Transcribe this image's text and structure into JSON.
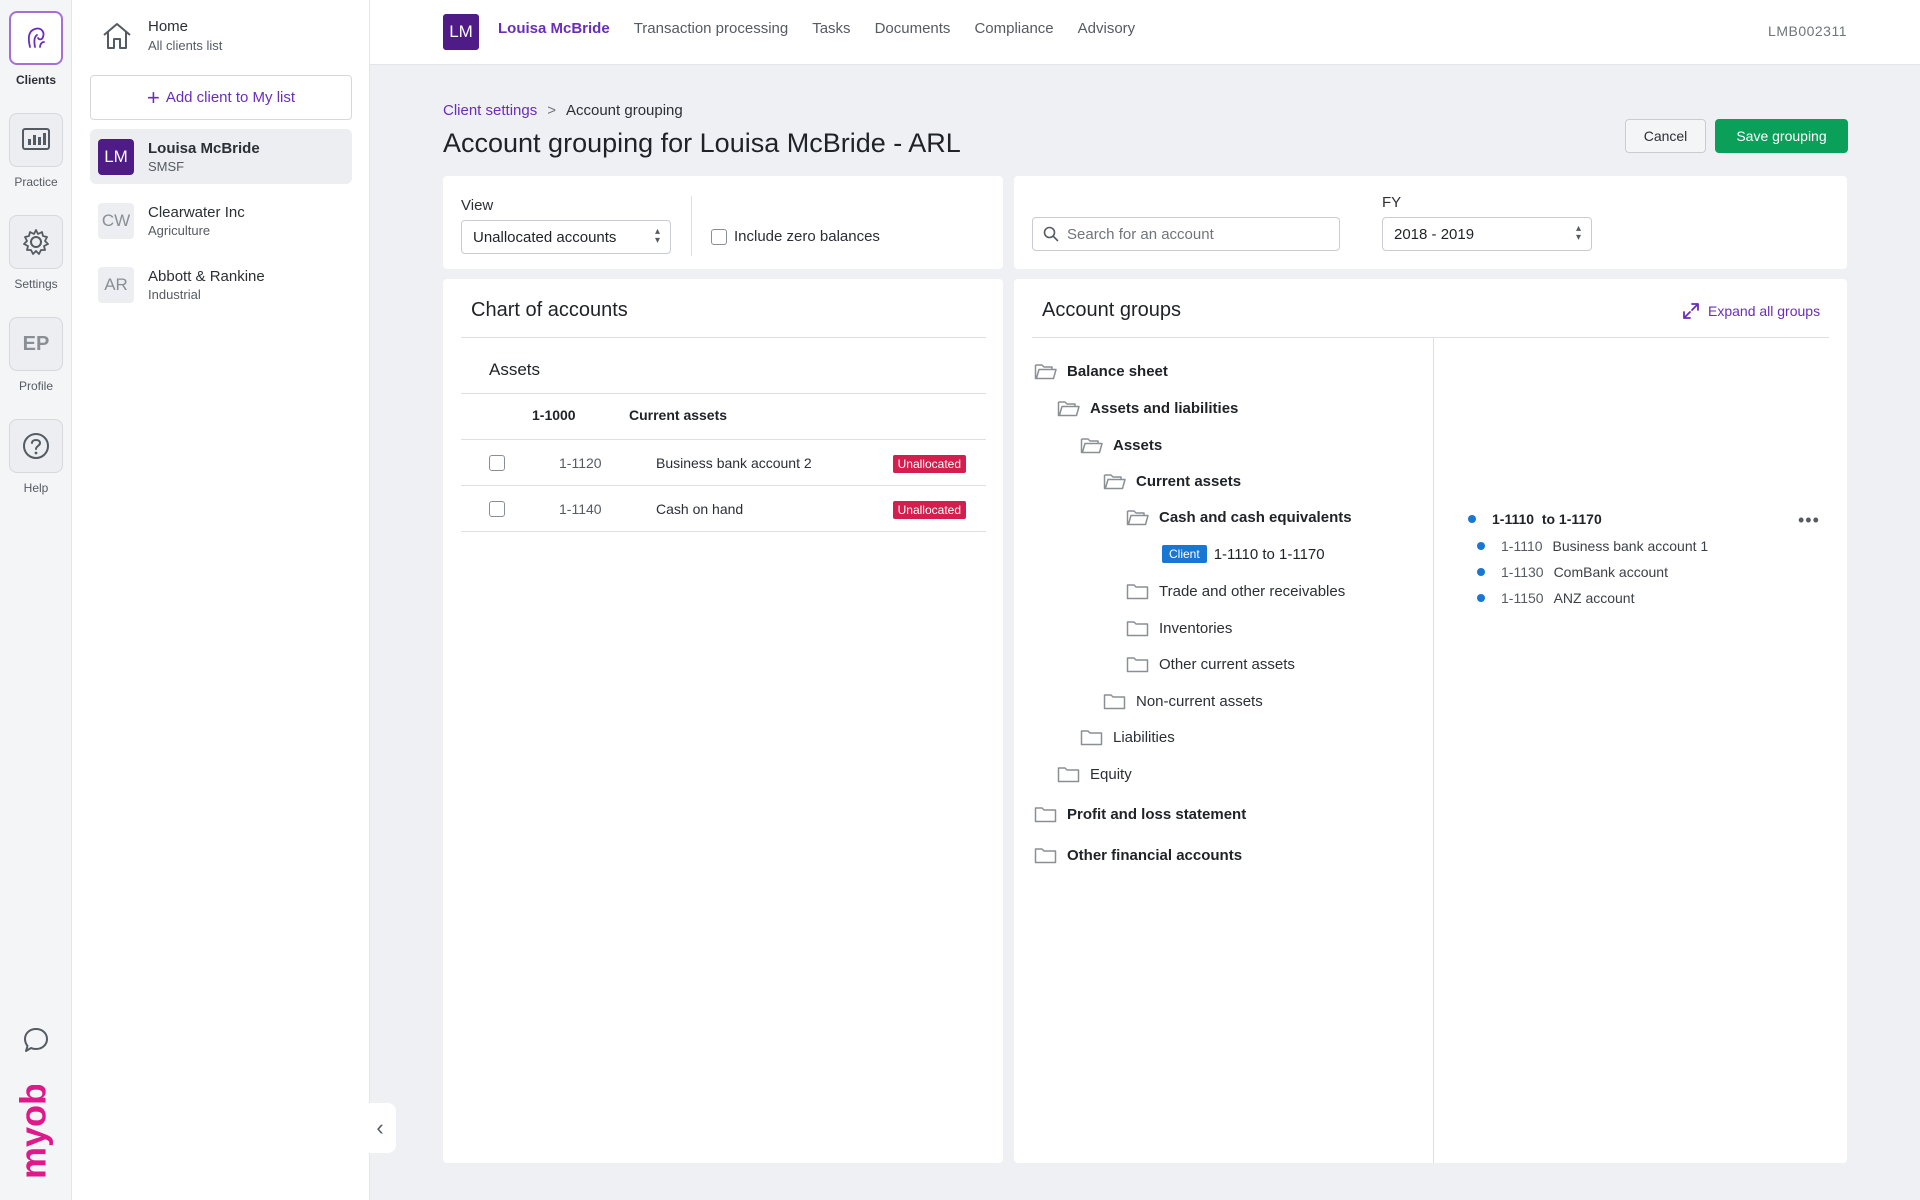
{
  "rail": {
    "items": [
      {
        "label": "Clients",
        "icon": "clients-icon"
      },
      {
        "label": "Practice",
        "icon": "practice-icon"
      },
      {
        "label": "Settings",
        "icon": "gear-icon"
      },
      {
        "label": "Profile",
        "initials": "EP"
      },
      {
        "label": "Help",
        "icon": "help-icon"
      }
    ],
    "chat_icon": "chat-icon",
    "brand": "myob",
    "brand_color": "#e0198a"
  },
  "clients_panel": {
    "home": {
      "title": "Home",
      "subtitle": "All clients list"
    },
    "add_button": "Add client to My list",
    "clients": [
      {
        "initials": "LM",
        "name": "Louisa McBride",
        "type": "SMSF",
        "selected": true
      },
      {
        "initials": "CW",
        "name": "Clearwater Inc",
        "type": "Agriculture",
        "selected": false
      },
      {
        "initials": "AR",
        "name": "Abbott & Rankine",
        "type": "Industrial",
        "selected": false
      }
    ]
  },
  "topnav": {
    "avatar": "LM",
    "items": [
      "Louisa McBride",
      "Transaction processing",
      "Tasks",
      "Documents",
      "Compliance",
      "Advisory"
    ],
    "active_index": 0,
    "client_code": "LMB002311"
  },
  "header": {
    "breadcrumb": {
      "parent": "Client settings",
      "separator": ">",
      "current": "Account grouping"
    },
    "title": "Account grouping for Louisa McBride - ARL",
    "cancel": "Cancel",
    "save": "Save grouping"
  },
  "filters": {
    "view_label": "View",
    "view_value": "Unallocated accounts",
    "zero_balances_label": "Include zero balances",
    "search_placeholder": "Search for an account",
    "fy_label": "FY",
    "fy_value": "2018 - 2019"
  },
  "chart_of_accounts": {
    "title": "Chart of accounts",
    "section": "Assets",
    "group": {
      "code": "1-1000",
      "name": "Current assets"
    },
    "rows": [
      {
        "code": "1-1120",
        "name": "Business bank account 2",
        "status": "Unallocated"
      },
      {
        "code": "1-1140",
        "name": "Cash on hand",
        "status": "Unallocated"
      }
    ]
  },
  "account_groups": {
    "title": "Account groups",
    "expand_all": "Expand all groups",
    "tree": [
      {
        "label": "Balance sheet",
        "open": true,
        "bold": true
      },
      {
        "label": "Assets and liabilities",
        "open": true,
        "bold": true
      },
      {
        "label": "Assets",
        "open": true,
        "bold": true
      },
      {
        "label": "Current assets",
        "open": true,
        "bold": true
      },
      {
        "label": "Cash and cash equivalents",
        "open": true,
        "bold": true
      },
      {
        "label": "1-1110 to 1-1170",
        "tag": "Client"
      },
      {
        "label": "Trade and other receivables",
        "open": false,
        "bold": false
      },
      {
        "label": "Inventories",
        "open": false,
        "bold": false
      },
      {
        "label": "Other current assets",
        "open": false,
        "bold": false
      },
      {
        "label": "Non-current assets",
        "open": false,
        "bold": false
      },
      {
        "label": "Liabilities",
        "open": false,
        "bold": false
      },
      {
        "label": "Equity",
        "open": false,
        "bold": false
      },
      {
        "label": "Profit and loss statement",
        "open": false,
        "bold": true
      },
      {
        "label": "Other financial accounts",
        "open": false,
        "bold": true
      }
    ],
    "detail": {
      "range": "1-1110  to 1-1170",
      "accounts": [
        {
          "code": "1-1110",
          "name": "Business bank account 1"
        },
        {
          "code": "1-1130",
          "name": "ComBank account"
        },
        {
          "code": "1-1150",
          "name": "ANZ account"
        }
      ]
    }
  },
  "colors": {
    "accent": "#6a2dbb",
    "avatar": "#4e1b87",
    "save": "#0aa05a",
    "unallocated": "#d41e4d",
    "client_tag": "#1876d4"
  }
}
